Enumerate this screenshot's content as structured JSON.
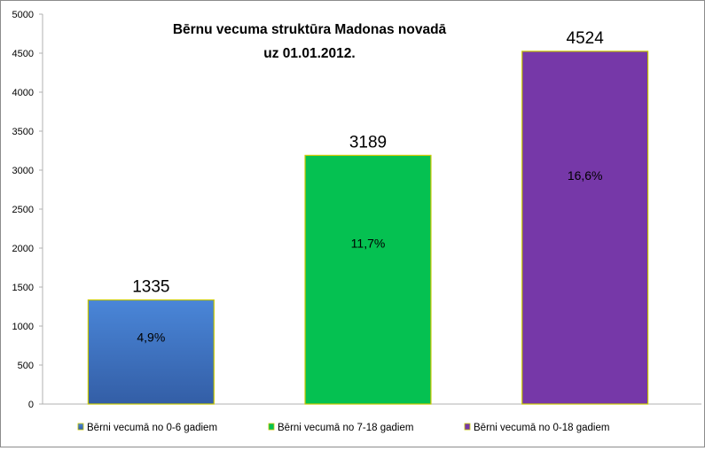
{
  "chart_data": {
    "type": "bar",
    "title_line1": "Bērnu vecuma struktūra  Madonas  novadā",
    "title_line2": "uz 01.01.2012.",
    "categories": [
      "Bērni vecumā no 0-6 gadiem",
      "Bērni vecumā no 7-18  gadiem",
      "Bērni vecumā no 0-18  gadiem"
    ],
    "values": [
      1335,
      3189,
      4524
    ],
    "value_labels": [
      "1335",
      "3189",
      "4524"
    ],
    "percent_labels": [
      "4,9%",
      "11,7%",
      "16,6%"
    ],
    "colors": [
      "#3f6fb8",
      "#05c151",
      "#7638a8"
    ],
    "ylim": [
      0,
      5000
    ],
    "yticks": [
      0,
      500,
      1000,
      1500,
      2000,
      2500,
      3000,
      3500,
      4000,
      4500,
      5000
    ],
    "grid": false,
    "legend_position": "bottom"
  }
}
